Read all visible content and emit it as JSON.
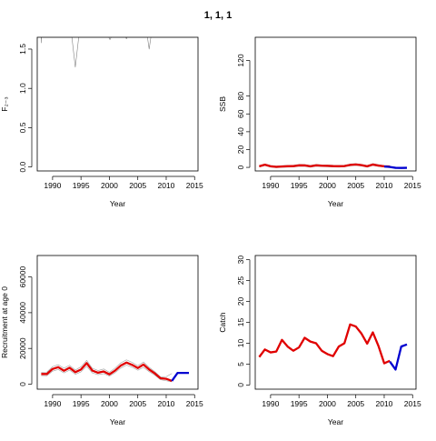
{
  "page_title": "1, 1, 1",
  "chart_data": [
    {
      "type": "line",
      "xlabel": "Year",
      "ylabel": "F₂₋₃",
      "xlim": [
        1987.3,
        2015.6
      ],
      "ylim": [
        -0.05,
        1.65
      ],
      "xticks": [
        1990,
        1995,
        2000,
        2005,
        2010,
        2015
      ],
      "yticks": [
        0.0,
        0.5,
        1.0,
        1.5
      ],
      "ytick_labels": [
        "0.0",
        "0.5",
        "1.0",
        "1.5"
      ],
      "series": [
        {
          "color": "#808080",
          "width": 0.6,
          "x": [
            1988,
            1988,
            1988.05,
            1993.4,
            1994,
            1994.6,
            1999.9,
            2000.1,
            2000.3,
            2002.9,
            2003,
            2003.1,
            2006.7,
            2007,
            2007.3,
            2015
          ],
          "y": [
            1.65,
            1.58,
            1.65,
            1.65,
            1.27,
            1.65,
            1.65,
            1.62,
            1.65,
            1.65,
            1.63,
            1.65,
            1.65,
            1.5,
            1.65,
            1.65
          ]
        }
      ]
    },
    {
      "type": "line",
      "xlabel": "Year",
      "ylabel": "SSB",
      "xlim": [
        1987.3,
        2015.6
      ],
      "ylim": [
        -4,
        146
      ],
      "xticks": [
        1990,
        1995,
        2000,
        2005,
        2010,
        2015
      ],
      "yticks": [
        0,
        20,
        40,
        60,
        80,
        120
      ],
      "ytick_labels": [
        "0",
        "20",
        "40",
        "60",
        "80",
        "120"
      ],
      "series": [
        {
          "color": "#a0a0a0",
          "width": 0.6,
          "x": [
            1988,
            1989,
            1990,
            1991,
            1992,
            1993,
            1994,
            1995,
            1996,
            1997,
            1998,
            1999,
            2000,
            2001,
            2002,
            2003,
            2004,
            2005,
            2006,
            2007,
            2008,
            2009,
            2010,
            2011
          ],
          "y": [
            0.3,
            2.0,
            0.3,
            -0.4,
            0.0,
            0.3,
            0.4,
            1.2,
            1.2,
            0.1,
            1.3,
            0.9,
            0.7,
            0.4,
            0.3,
            0.5,
            1.7,
            2.2,
            1.5,
            0.1,
            2.2,
            1.0,
            0.2,
            0.0
          ]
        },
        {
          "color": "#a0a0a0",
          "width": 0.6,
          "x": [
            1988,
            1989,
            1990,
            1991,
            1992,
            1993,
            1994,
            1995,
            1996,
            1997,
            1998,
            1999,
            2000,
            2001,
            2002,
            2003,
            2004,
            2005,
            2006,
            2007,
            2008,
            2009,
            2010,
            2011
          ],
          "y": [
            2.1,
            3.9,
            2.2,
            1.6,
            2.0,
            2.3,
            2.4,
            3.4,
            3.2,
            2.2,
            3.3,
            2.9,
            2.7,
            2.4,
            2.3,
            2.5,
            3.8,
            4.3,
            3.5,
            2.2,
            4.2,
            3.1,
            2.1,
            1.8
          ]
        },
        {
          "color": "#e00000",
          "width": 2.3,
          "x": [
            1988,
            1989,
            1990,
            1991,
            1992,
            1993,
            1994,
            1995,
            1996,
            1997,
            1998,
            1999,
            2000,
            2001,
            2002,
            2003,
            2004,
            2005,
            2006,
            2007,
            2008,
            2009,
            2010,
            2011
          ],
          "y": [
            1.2,
            3.0,
            1.2,
            0.6,
            1.0,
            1.3,
            1.4,
            2.3,
            2.2,
            1.2,
            2.3,
            1.9,
            1.7,
            1.4,
            1.3,
            1.5,
            2.8,
            3.3,
            2.5,
            1.2,
            3.2,
            2.0,
            1.2,
            0.9
          ]
        },
        {
          "color": "#0000d0",
          "width": 2.3,
          "x": [
            2010,
            2011,
            2012,
            2013,
            2014
          ],
          "y": [
            1.0,
            0.5,
            -0.5,
            -0.6,
            -0.5
          ]
        }
      ]
    },
    {
      "type": "line",
      "xlabel": "Year",
      "ylabel": "Recruitment at age 0",
      "xlim": [
        1987.3,
        2015.6
      ],
      "ylim": [
        -2800,
        72000
      ],
      "xticks": [
        1990,
        1995,
        2000,
        2005,
        2010,
        2015
      ],
      "yticks": [
        0,
        20000,
        40000,
        60000
      ],
      "ytick_labels": [
        "0",
        "20000",
        "40000",
        "60000"
      ],
      "series": [
        {
          "color": "#a0a0a0",
          "width": 0.6,
          "x": [
            1988,
            1989,
            1990,
            1991,
            1992,
            1993,
            1994,
            1995,
            1996,
            1997,
            1998,
            1999,
            2000,
            2001,
            2002,
            2003,
            2004,
            2005,
            2006,
            2007,
            2008,
            2009,
            2010,
            2011
          ],
          "y": [
            4800,
            4700,
            7300,
            8200,
            6300,
            7900,
            5500,
            6900,
            10000,
            6300,
            5300,
            5900,
            4500,
            6400,
            9000,
            10700,
            9500,
            7800,
            9400,
            7000,
            5000,
            2500,
            1900,
            1300
          ]
        },
        {
          "color": "#a0a0a0",
          "width": 0.6,
          "x": [
            1988,
            1989,
            1990,
            1991,
            1992,
            1993,
            1994,
            1995,
            1996,
            1997,
            1998,
            1999,
            2000,
            2001,
            2002,
            2003,
            2004,
            2005,
            2006,
            2007,
            2008,
            2009,
            2010,
            2011
          ],
          "y": [
            6700,
            6800,
            9800,
            10900,
            8900,
            10600,
            7900,
            9700,
            13300,
            8900,
            7600,
            8500,
            6600,
            9000,
            11900,
            13600,
            12200,
            10300,
            12400,
            9400,
            7000,
            4000,
            4200,
            6000
          ]
        },
        {
          "color": "#e00000",
          "width": 2.3,
          "x": [
            1988,
            1989,
            1990,
            1991,
            1992,
            1993,
            1994,
            1995,
            1996,
            1997,
            1998,
            1999,
            2000,
            2001,
            2002,
            2003,
            2004,
            2005,
            2006,
            2007,
            2008,
            2009,
            2010,
            2011
          ],
          "y": [
            5700,
            5700,
            8500,
            9500,
            7500,
            9200,
            6700,
            8200,
            11800,
            7600,
            6400,
            7100,
            5500,
            7600,
            10400,
            12100,
            10800,
            9000,
            11000,
            8200,
            6000,
            3300,
            3000,
            1800
          ]
        },
        {
          "color": "#0000d0",
          "width": 2.3,
          "x": [
            2011,
            2012,
            2013,
            2014
          ],
          "y": [
            1800,
            6300,
            6300,
            6300
          ]
        }
      ]
    },
    {
      "type": "line",
      "xlabel": "Year",
      "ylabel": "Catch",
      "xlim": [
        1987.3,
        2015.6
      ],
      "ylim": [
        -1,
        31
      ],
      "xticks": [
        1990,
        1995,
        2000,
        2005,
        2010,
        2015
      ],
      "yticks": [
        0,
        5,
        10,
        15,
        20,
        25,
        30
      ],
      "ytick_labels": [
        "0",
        "5",
        "10",
        "15",
        "20",
        "25",
        "30"
      ],
      "series": [
        {
          "color": "#e00000",
          "width": 2.3,
          "x": [
            1988,
            1989,
            1990,
            1991,
            1992,
            1993,
            1994,
            1995,
            1996,
            1997,
            1998,
            1999,
            2000,
            2001,
            2002,
            2003,
            2004,
            2005,
            2006,
            2007,
            2008,
            2009,
            2010,
            2011
          ],
          "y": [
            6.7,
            8.5,
            7.8,
            8.0,
            10.8,
            9.2,
            8.2,
            9.0,
            11.3,
            10.4,
            10.0,
            8.2,
            7.4,
            6.9,
            9.2,
            10.0,
            14.5,
            14.0,
            12.3,
            9.9,
            12.6,
            9.3,
            5.2,
            5.8
          ]
        },
        {
          "color": "#0000d0",
          "width": 2.3,
          "x": [
            2011,
            2012,
            2013,
            2014
          ],
          "y": [
            5.6,
            3.7,
            9.2,
            9.7
          ]
        }
      ]
    }
  ]
}
